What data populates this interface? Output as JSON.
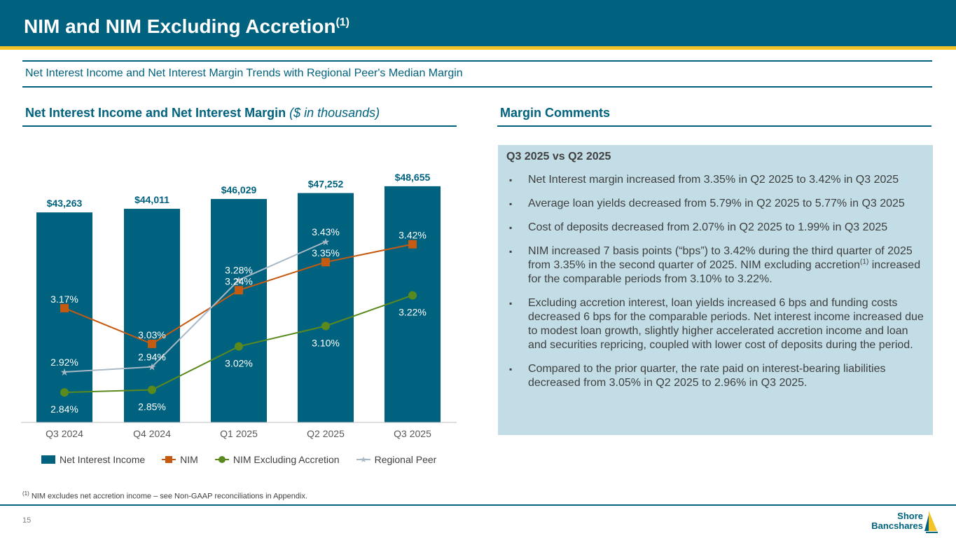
{
  "header": {
    "title": "NIM and NIM Excluding Accretion",
    "title_sup": "(1)"
  },
  "subtitle": "Net Interest Income and Net Interest Margin Trends with Regional Peer's Median Margin",
  "left_section": {
    "title": "Net Interest Income and Net Interest Margin",
    "title_italic": "($ in thousands)"
  },
  "right_section": {
    "title": "Margin Comments"
  },
  "colors": {
    "primary": "#00627f",
    "accent": "#f3c327",
    "nim": "#c55a11",
    "nim_ex": "#5a8a1e",
    "peer": "#a8b8c4",
    "box": "#c2dde5"
  },
  "chart_data": {
    "type": "bar",
    "title": "Net Interest Income and Net Interest Margin",
    "categories": [
      "Q3 2024",
      "Q4 2024",
      "Q1 2025",
      "Q2 2025",
      "Q3 2025"
    ],
    "bars": {
      "name": "Net Interest Income",
      "values": [
        43263,
        44011,
        46029,
        47252,
        48655
      ],
      "labels": [
        "$43,263",
        "$44,011",
        "$46,029",
        "$47,252",
        "$48,655"
      ],
      "ylim": [
        0,
        49500
      ]
    },
    "series": [
      {
        "name": "NIM",
        "values": [
          3.17,
          3.03,
          3.24,
          3.35,
          3.42
        ],
        "labels": [
          "3.17%",
          "3.03%",
          "3.24%",
          "3.35%",
          "3.42%"
        ]
      },
      {
        "name": "NIM Excluding Accretion",
        "values": [
          2.84,
          2.85,
          3.02,
          3.1,
          3.22
        ],
        "labels": [
          "2.84%",
          "2.85%",
          "3.02%",
          "3.10%",
          "3.22%"
        ]
      },
      {
        "name": "Regional Peer",
        "values": [
          2.92,
          2.94,
          3.28,
          3.43,
          null
        ],
        "labels": [
          "2.92%",
          "2.94%",
          "3.28%",
          "3.43%",
          ""
        ]
      }
    ],
    "line_ylim": [
      2.75,
      3.6
    ],
    "legend": [
      "Net Interest Income",
      "NIM",
      "NIM Excluding Accretion",
      "Regional Peer"
    ]
  },
  "comments": {
    "heading": "Q3 2025 vs Q2 2025",
    "bullets": [
      {
        "text": "Net Interest margin increased from 3.35% in Q2 2025 to 3.42% in Q3 2025"
      },
      {
        "text": "Average loan yields decreased from 5.79% in Q2 2025 to 5.77% in Q3 2025"
      },
      {
        "text": "Cost of deposits decreased from 2.07% in Q2 2025 to 1.99% in Q3 2025"
      },
      {
        "text": "NIM increased 7 basis points (“bps”) to 3.42% during the third quarter of 2025 from 3.35% in the second quarter of 2025. NIM excluding accretion",
        "sup": "(1)",
        "text_after": " increased for the comparable periods from 3.10% to 3.22%."
      },
      {
        "text": "Excluding accretion interest, loan yields increased 6 bps and funding costs decreased 6 bps for the comparable periods. Net interest income increased due to modest loan growth, slightly higher accelerated accretion income and loan and securities repricing, coupled with lower cost of deposits during the period."
      },
      {
        "text": "Compared to the prior quarter, the rate paid on interest-bearing liabilities decreased from 3.05% in Q2 2025 to 2.96% in Q3 2025."
      }
    ]
  },
  "footnote": {
    "sup": "(1)",
    "text": " NIM excludes net accretion income – see Non-GAAP reconciliations in Appendix."
  },
  "page_number": "15",
  "logo": {
    "line1": "Shore",
    "line2": "Bancshares"
  }
}
